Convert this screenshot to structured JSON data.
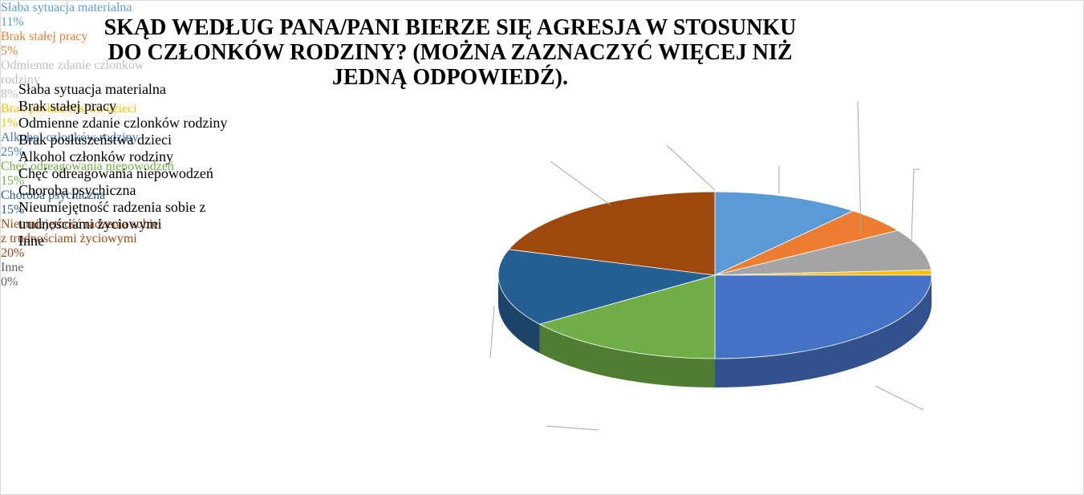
{
  "chart_data": {
    "type": "pie",
    "title": "SKĄD WEDŁUG PANA/PANI BIERZE SIĘ AGRESJA W STOSUNKU DO CZŁONKÓW RODZINY? (MOŻNA ZAZNACZYĆ WIĘCEJ NIŻ JEDNĄ ODPOWIEDŹ).",
    "categories": [
      "Słaba sytuacja materialna",
      "Brak stałej pracy",
      "Odmienne zdanie czlonków rodziny",
      "Brak posłuszeństwa dzieci",
      "Alkohol członków rodziny",
      "Chęć odreagowania niepowodzeń",
      "Choroba psychiczna",
      "Nieumiejętność radzenia sobie z trudnościami życiowymi",
      "Inne"
    ],
    "values": [
      11,
      5,
      8,
      1,
      25,
      15,
      15,
      20,
      0
    ],
    "value_labels": [
      "11%",
      "5%",
      "8%",
      "1%",
      "25%",
      "15%",
      "15%",
      "20%",
      "0%"
    ],
    "colors": [
      "#5b9bd5",
      "#ed7d31",
      "#a5a5a5",
      "#ffc000",
      "#4472c4",
      "#70ad47",
      "#255e91",
      "#9e480e",
      "#636363"
    ],
    "legend": "left"
  }
}
